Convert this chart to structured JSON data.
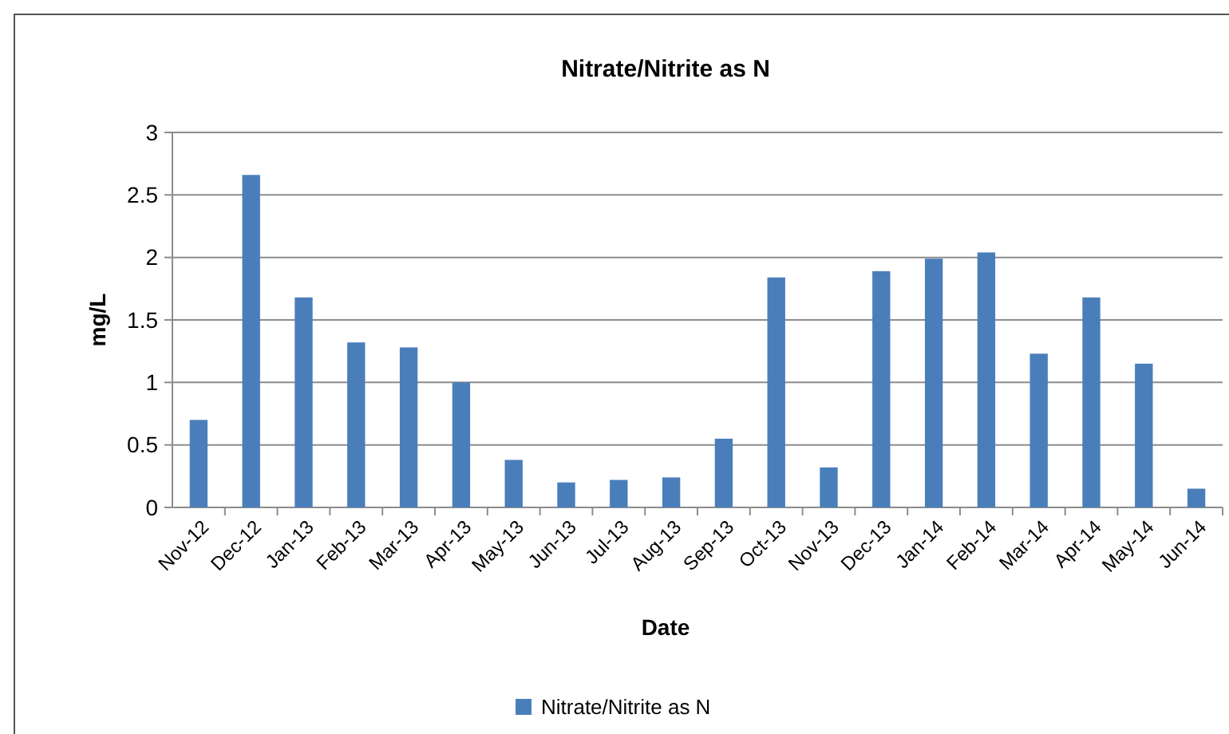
{
  "chart_data": {
    "type": "bar",
    "title": "Nitrate/Nitrite as N",
    "xlabel": "Date",
    "ylabel": "mg/L",
    "categories": [
      "Nov-12",
      "Dec-12",
      "Jan-13",
      "Feb-13",
      "Mar-13",
      "Apr-13",
      "May-13",
      "Jun-13",
      "Jul-13",
      "Aug-13",
      "Sep-13",
      "Oct-13",
      "Nov-13",
      "Dec-13",
      "Jan-14",
      "Feb-14",
      "Mar-14",
      "Apr-14",
      "May-14",
      "Jun-14"
    ],
    "series": [
      {
        "name": "Nitrate/Nitrite as N",
        "color": "#4a7ebb",
        "values": [
          0.7,
          2.66,
          1.68,
          1.32,
          1.28,
          1.0,
          0.38,
          0.2,
          0.22,
          0.24,
          0.55,
          1.84,
          0.32,
          1.89,
          1.99,
          2.04,
          1.23,
          1.68,
          1.15,
          0.15
        ]
      }
    ],
    "ylim": [
      0,
      3
    ],
    "yticks": [
      0,
      0.5,
      1,
      1.5,
      2,
      2.5,
      3
    ],
    "grid": "y",
    "legend": "bottom"
  }
}
